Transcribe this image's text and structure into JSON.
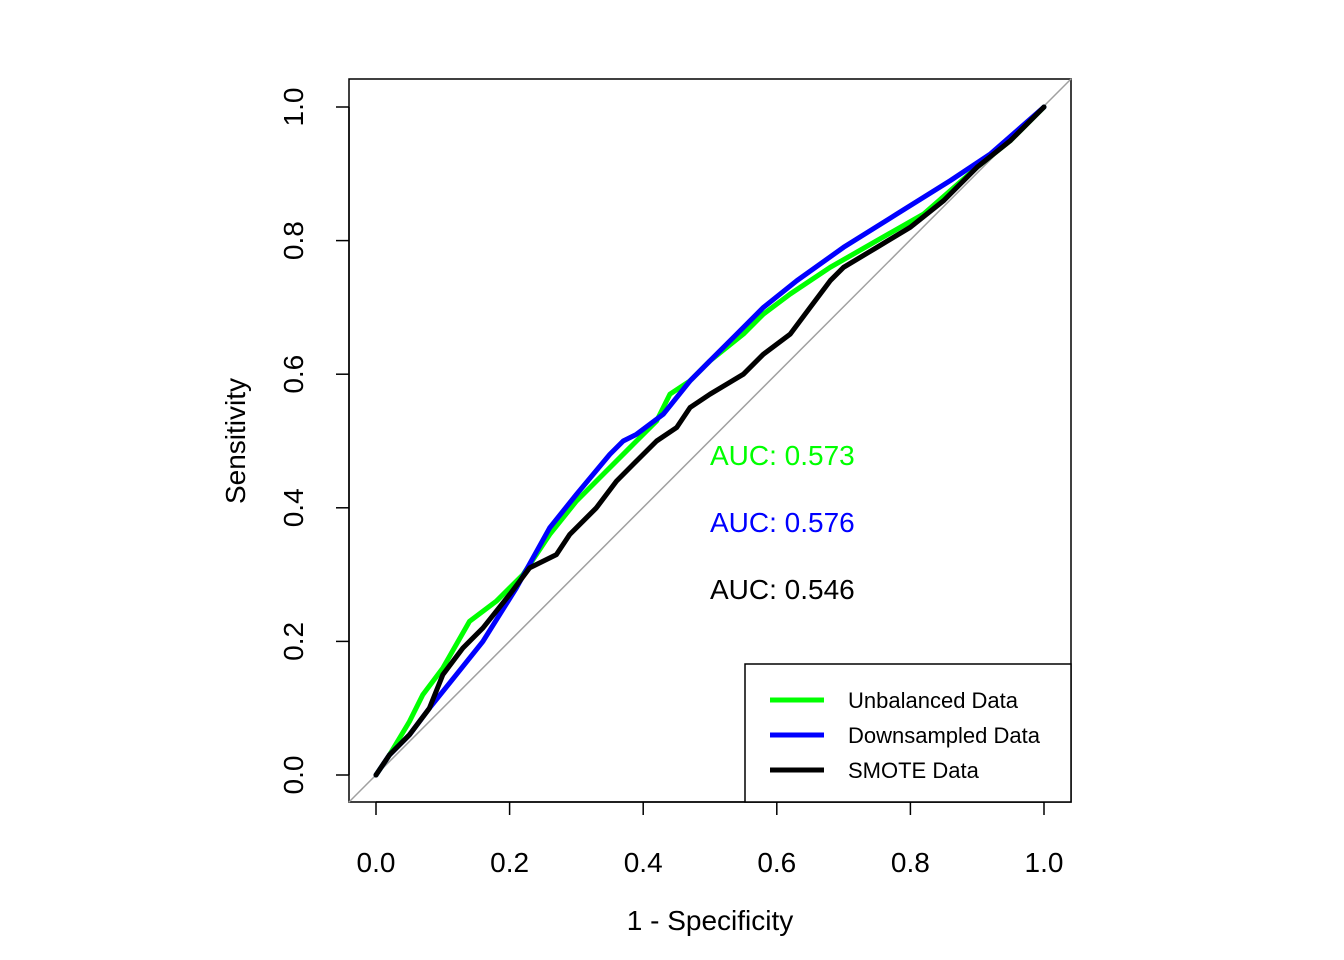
{
  "chart_data": {
    "type": "line",
    "title": "",
    "xlabel": "1 - Specificity",
    "ylabel": "Sensitivity",
    "xlim": [
      0.0,
      1.0
    ],
    "ylim": [
      0.0,
      1.0
    ],
    "xticks": [
      "0.0",
      "0.2",
      "0.4",
      "0.6",
      "0.8",
      "1.0"
    ],
    "yticks": [
      "0.0",
      "0.2",
      "0.4",
      "0.6",
      "0.8",
      "1.0"
    ],
    "grid": false,
    "legend_position": "bottom-right",
    "diagonal_reference": true,
    "series": [
      {
        "name": "Unbalanced Data",
        "color": "#00ff00",
        "auc_label": "AUC: 0.573",
        "x": [
          0,
          0.02,
          0.05,
          0.07,
          0.1,
          0.14,
          0.18,
          0.22,
          0.26,
          0.3,
          0.34,
          0.38,
          0.42,
          0.44,
          0.47,
          0.5,
          0.55,
          0.58,
          0.62,
          0.68,
          0.75,
          0.82,
          0.9,
          0.95,
          1.0
        ],
        "y": [
          0,
          0.03,
          0.08,
          0.12,
          0.16,
          0.23,
          0.26,
          0.3,
          0.36,
          0.41,
          0.45,
          0.49,
          0.53,
          0.57,
          0.59,
          0.62,
          0.66,
          0.69,
          0.72,
          0.76,
          0.8,
          0.84,
          0.91,
          0.95,
          1.0
        ]
      },
      {
        "name": "Downsampled Data",
        "color": "#0000ff",
        "auc_label": "AUC: 0.576",
        "x": [
          0,
          0.02,
          0.05,
          0.08,
          0.12,
          0.16,
          0.21,
          0.26,
          0.3,
          0.35,
          0.37,
          0.39,
          0.43,
          0.47,
          0.5,
          0.54,
          0.58,
          0.63,
          0.7,
          0.78,
          0.86,
          0.92,
          1.0
        ],
        "y": [
          0,
          0.03,
          0.06,
          0.1,
          0.15,
          0.2,
          0.28,
          0.37,
          0.42,
          0.48,
          0.5,
          0.51,
          0.54,
          0.59,
          0.62,
          0.66,
          0.7,
          0.74,
          0.79,
          0.84,
          0.89,
          0.93,
          1.0
        ]
      },
      {
        "name": "SMOTE Data",
        "color": "#000000",
        "auc_label": "AUC: 0.546",
        "x": [
          0,
          0.02,
          0.05,
          0.08,
          0.1,
          0.13,
          0.16,
          0.2,
          0.23,
          0.27,
          0.29,
          0.33,
          0.36,
          0.39,
          0.42,
          0.45,
          0.47,
          0.5,
          0.55,
          0.58,
          0.62,
          0.65,
          0.68,
          0.7,
          0.75,
          0.8,
          0.85,
          0.9,
          0.95,
          1.0
        ],
        "y": [
          0,
          0.03,
          0.06,
          0.1,
          0.15,
          0.19,
          0.22,
          0.27,
          0.31,
          0.33,
          0.36,
          0.4,
          0.44,
          0.47,
          0.5,
          0.52,
          0.55,
          0.57,
          0.6,
          0.63,
          0.66,
          0.7,
          0.74,
          0.76,
          0.79,
          0.82,
          0.86,
          0.91,
          0.95,
          1.0
        ]
      }
    ]
  }
}
